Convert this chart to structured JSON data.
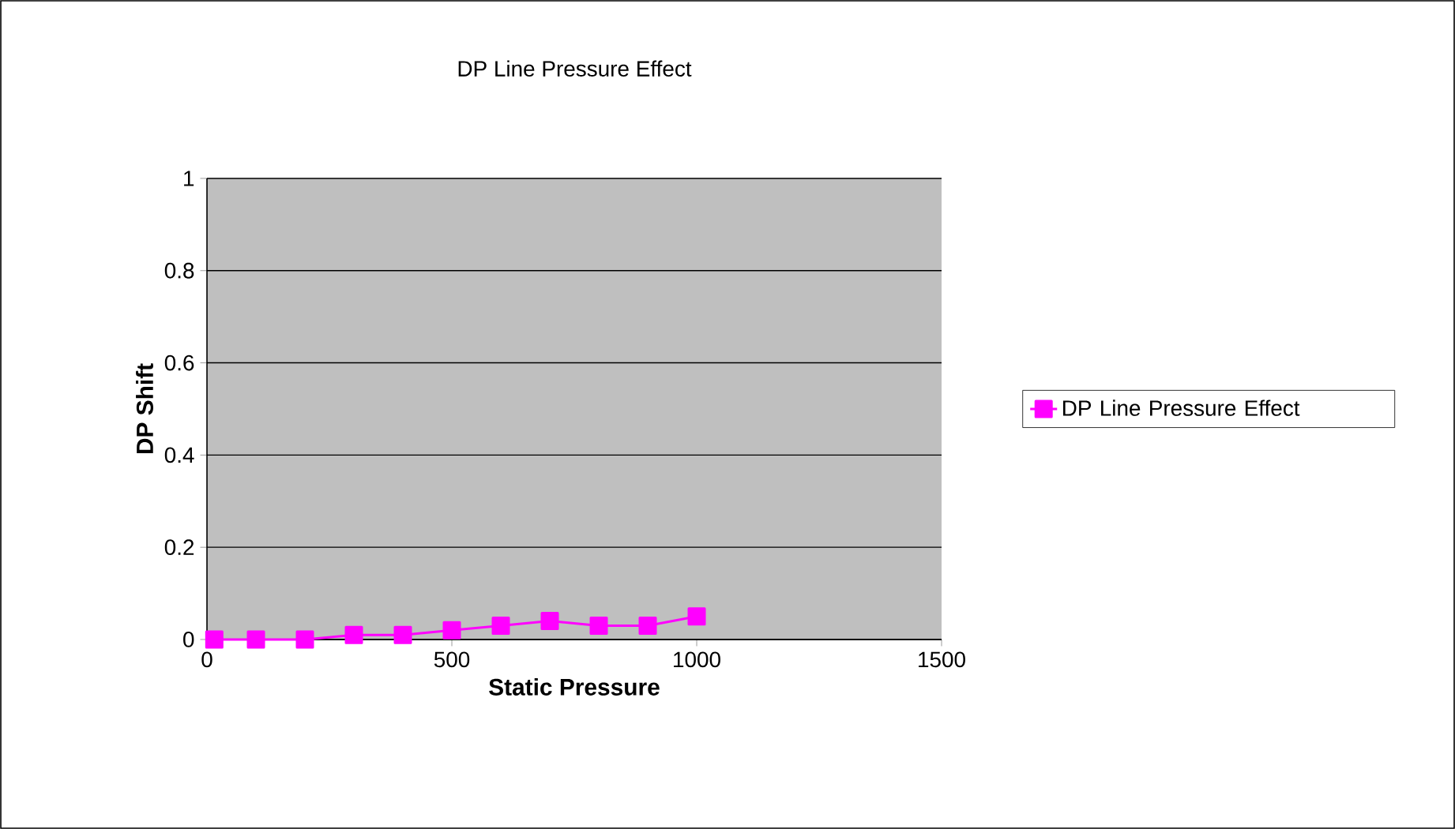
{
  "chart_data": {
    "type": "line",
    "title": "DP Line Pressure Effect",
    "xlabel": "Static Pressure",
    "ylabel": "DP Shift",
    "x": [
      15,
      100,
      200,
      300,
      400,
      500,
      600,
      700,
      800,
      900,
      1000
    ],
    "series": [
      {
        "name": "DP Line Pressure Effect",
        "color": "#ff00ff",
        "values": [
          0,
          0,
          0,
          0.01,
          0.01,
          0.02,
          0.03,
          0.04,
          0.03,
          0.03,
          0.05
        ]
      }
    ],
    "xlim": [
      0,
      1500
    ],
    "xticks": [
      0,
      500,
      1000,
      1500
    ],
    "ylim": [
      0,
      1
    ],
    "yticks": [
      0,
      0.2,
      0.4,
      0.6,
      0.8,
      1
    ],
    "grid": "y",
    "legend": "right",
    "marker": "square",
    "line_style": "solid"
  }
}
